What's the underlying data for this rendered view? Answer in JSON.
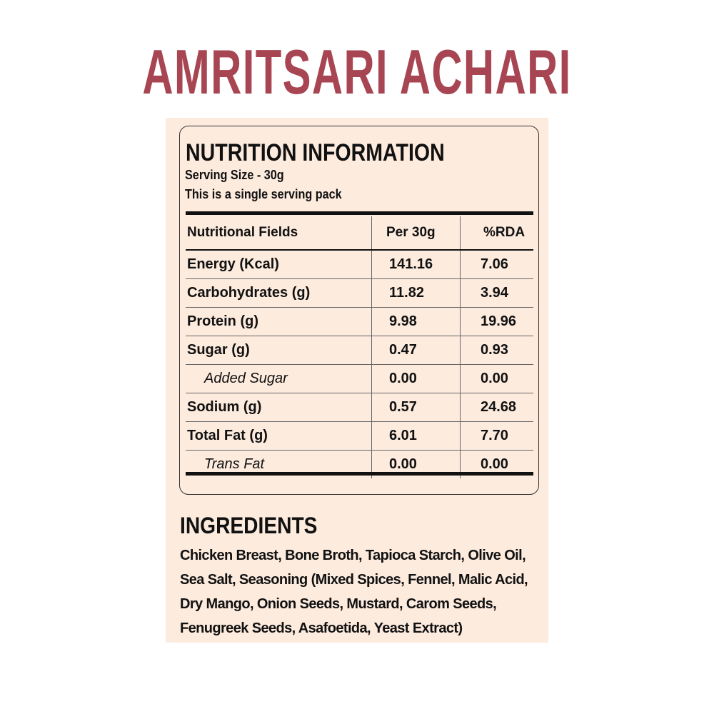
{
  "title": "AMRITSARI ACHARI",
  "colors": {
    "title": "#a84552",
    "panel_bg": "#fdebde"
  },
  "nutrition": {
    "heading": "NUTRITION INFORMATION",
    "serving_size": "Serving Size - 30g",
    "pack_note": "This is a single serving pack",
    "columns": [
      "Nutritional Fields",
      "Per 30g",
      "%RDA"
    ],
    "rows": [
      {
        "field": "Energy (Kcal)",
        "per": "141.16",
        "rda": "7.06"
      },
      {
        "field": "Carbohydrates (g)",
        "per": "11.82",
        "rda": "3.94"
      },
      {
        "field": "Protein (g)",
        "per": "9.98",
        "rda": "19.96"
      },
      {
        "field": "Sugar (g)",
        "per": "0.47",
        "rda": "0.93"
      },
      {
        "field": "Added Sugar",
        "per": "0.00",
        "rda": "0.00"
      },
      {
        "field": "Sodium (g)",
        "per": "0.57",
        "rda": "24.68"
      },
      {
        "field": "Total Fat (g)",
        "per": "6.01",
        "rda": "7.70"
      },
      {
        "field": "Trans Fat",
        "per": "0.00",
        "rda": "0.00"
      }
    ]
  },
  "ingredients": {
    "heading": "INGREDIENTS",
    "text": "Chicken Breast, Bone Broth, Tapioca Starch, Olive Oil, Sea Salt, Seasoning (Mixed Spices, Fennel, Malic Acid, Dry Mango, Onion Seeds, Mustard, Carom Seeds, Fenugreek Seeds, Asafoetida, Yeast Extract)"
  }
}
